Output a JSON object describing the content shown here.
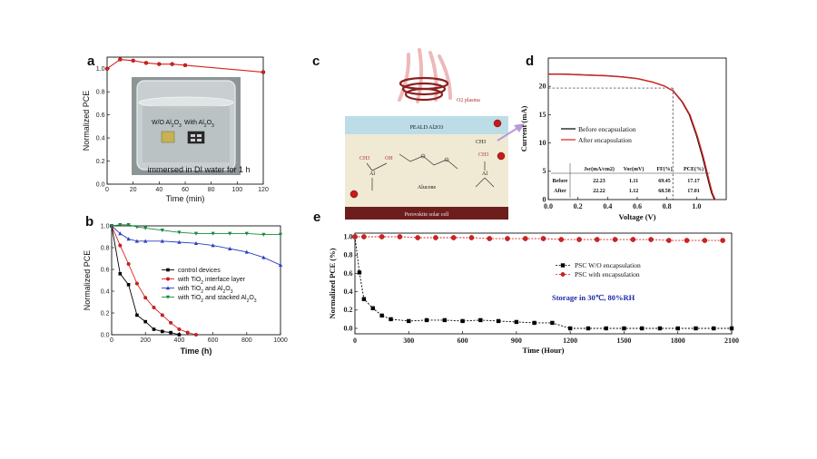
{
  "chart_data": [
    {
      "panel": "a",
      "type": "line",
      "xlabel": "Time (min)",
      "ylabel": "Normalized PCE",
      "xlim": [
        0,
        120
      ],
      "ylim": [
        0.0,
        1.1
      ],
      "xticks": [
        "0",
        "20",
        "40",
        "60",
        "80",
        "100",
        "120"
      ],
      "yticks": [
        "0.0",
        "0.2",
        "0.4",
        "0.6",
        "0.8",
        "1.0"
      ],
      "x": [
        0,
        10,
        20,
        30,
        40,
        50,
        60,
        120
      ],
      "y": [
        1.0,
        1.08,
        1.07,
        1.05,
        1.04,
        1.04,
        1.03,
        0.97
      ],
      "inset_labels": {
        "left_sample": "W/O Al2O3",
        "right_sample": "With Al2O3",
        "caption": "immersed in DI water for 1 h"
      }
    },
    {
      "panel": "b",
      "type": "line",
      "xlabel": "Time (h)",
      "ylabel": "Normalized PCE",
      "xlim": [
        0,
        1000
      ],
      "ylim": [
        0.0,
        1.0
      ],
      "xticks": [
        "0",
        "200",
        "400",
        "600",
        "800",
        "1000"
      ],
      "yticks": [
        "0.0",
        "0.2",
        "0.4",
        "0.6",
        "0.8",
        "1.0"
      ],
      "series": [
        {
          "name": "control devices",
          "color": "#000000",
          "marker": "square",
          "x": [
            0,
            50,
            100,
            150,
            200,
            250,
            300,
            350,
            400
          ],
          "y": [
            1.0,
            0.56,
            0.46,
            0.18,
            0.12,
            0.05,
            0.03,
            0.02,
            0.0
          ]
        },
        {
          "name": "with TiO2 interface layer",
          "color": "#d62020",
          "marker": "circle",
          "x": [
            0,
            50,
            100,
            150,
            200,
            250,
            300,
            350,
            400,
            450,
            500
          ],
          "y": [
            1.0,
            0.82,
            0.65,
            0.47,
            0.34,
            0.25,
            0.18,
            0.11,
            0.05,
            0.02,
            0.0
          ]
        },
        {
          "name": "with TiO2 and Al2O3",
          "color": "#2a3fbf",
          "marker": "triangle-up",
          "x": [
            0,
            50,
            100,
            150,
            200,
            300,
            400,
            500,
            600,
            700,
            800,
            900,
            1000
          ],
          "y": [
            1.0,
            0.93,
            0.88,
            0.86,
            0.86,
            0.86,
            0.85,
            0.84,
            0.82,
            0.79,
            0.76,
            0.71,
            0.64
          ]
        },
        {
          "name": "with TiO2 and stacked Al2O3",
          "color": "#1a8a3a",
          "marker": "triangle-down",
          "x": [
            0,
            50,
            100,
            150,
            200,
            300,
            400,
            500,
            600,
            700,
            800,
            900,
            1000
          ],
          "y": [
            1.0,
            1.01,
            1.01,
            0.99,
            0.98,
            0.96,
            0.94,
            0.93,
            0.93,
            0.93,
            0.93,
            0.92,
            0.92
          ]
        }
      ]
    },
    {
      "panel": "c",
      "type": "diagram",
      "labels": {
        "plasma": "O2 plasma",
        "layer": "PEALD Al2O3",
        "methyl": "CH3",
        "left_group_ch3": "CH3",
        "left_group_al": "Al",
        "left_group_oh": "OH",
        "alucone": "Alucone",
        "right_group_ch3": "CH3",
        "right_group_al": "Al",
        "substrate": "Perovskite solar cell"
      }
    },
    {
      "panel": "d",
      "type": "line",
      "xlabel": "Voltage (V)",
      "ylabel": "Current (mA)",
      "xlim": [
        0.0,
        1.2
      ],
      "ylim": [
        0,
        25
      ],
      "xticks": [
        "0.0",
        "0.2",
        "0.4",
        "0.6",
        "0.8",
        "1.0"
      ],
      "yticks": [
        "0",
        "5",
        "10",
        "15",
        "20"
      ],
      "series": [
        {
          "name": "Before encapsulation",
          "color": "#000000"
        },
        {
          "name": "After encapsulation",
          "color": "#d62020"
        }
      ],
      "curve_v": [
        0.0,
        0.1,
        0.2,
        0.3,
        0.4,
        0.5,
        0.6,
        0.7,
        0.78,
        0.84,
        0.9,
        0.95,
        1.0,
        1.04,
        1.08,
        1.1,
        1.12
      ],
      "curve_i": [
        22.2,
        22.2,
        22.1,
        22.0,
        21.9,
        21.7,
        21.4,
        20.8,
        20.1,
        19.2,
        17.3,
        15.0,
        11.2,
        7.5,
        3.2,
        1.2,
        0.0
      ],
      "mpp": {
        "v": 0.84,
        "i": 19.7
      },
      "table": {
        "headers": [
          "",
          "Jsc(mA/cm2)",
          "Voc(mV)",
          "FF(%)",
          "PCE(%)"
        ],
        "rows": [
          [
            "Before",
            "22.23",
            "1.11",
            "69.45",
            "17.17"
          ],
          [
            "After",
            "22.22",
            "1.12",
            "68.58",
            "17.01"
          ]
        ]
      }
    },
    {
      "panel": "e",
      "type": "line",
      "xlabel": "Time (Hour)",
      "ylabel": "Normalized PCE (%)",
      "xlim": [
        0,
        2100
      ],
      "ylim": [
        0.0,
        1.0
      ],
      "xticks": [
        "0",
        "300",
        "600",
        "900",
        "1200",
        "1500",
        "1800",
        "2100"
      ],
      "yticks": [
        "0.0",
        "0.2",
        "0.4",
        "0.6",
        "0.8",
        "1.0"
      ],
      "annotation": "Storage in 30℃, 80%RH",
      "series": [
        {
          "name": "PSC W/O encapsulation",
          "color": "#000000",
          "marker": "square",
          "x": [
            0,
            25,
            50,
            100,
            150,
            200,
            300,
            400,
            500,
            600,
            700,
            800,
            900,
            1000,
            1100,
            1200,
            1300,
            1400,
            1500,
            1600,
            1700,
            1800,
            1900,
            2000,
            2100
          ],
          "y": [
            1.0,
            0.61,
            0.32,
            0.22,
            0.14,
            0.1,
            0.08,
            0.09,
            0.09,
            0.08,
            0.09,
            0.08,
            0.07,
            0.06,
            0.06,
            0.0,
            0.0,
            0.0,
            0.0,
            0.0,
            0.0,
            0.0,
            0.0,
            0.0,
            0.0
          ]
        },
        {
          "name": "PSC with encapsulation",
          "color": "#d62020",
          "marker": "circle",
          "x": [
            0,
            50,
            150,
            250,
            350,
            450,
            550,
            650,
            750,
            850,
            950,
            1050,
            1150,
            1250,
            1350,
            1450,
            1550,
            1650,
            1750,
            1850,
            1950,
            2050
          ],
          "y": [
            1.0,
            1.0,
            1.0,
            1.0,
            0.99,
            0.99,
            0.99,
            0.99,
            0.98,
            0.98,
            0.98,
            0.98,
            0.97,
            0.97,
            0.97,
            0.97,
            0.97,
            0.97,
            0.96,
            0.96,
            0.96,
            0.96
          ]
        }
      ]
    }
  ]
}
